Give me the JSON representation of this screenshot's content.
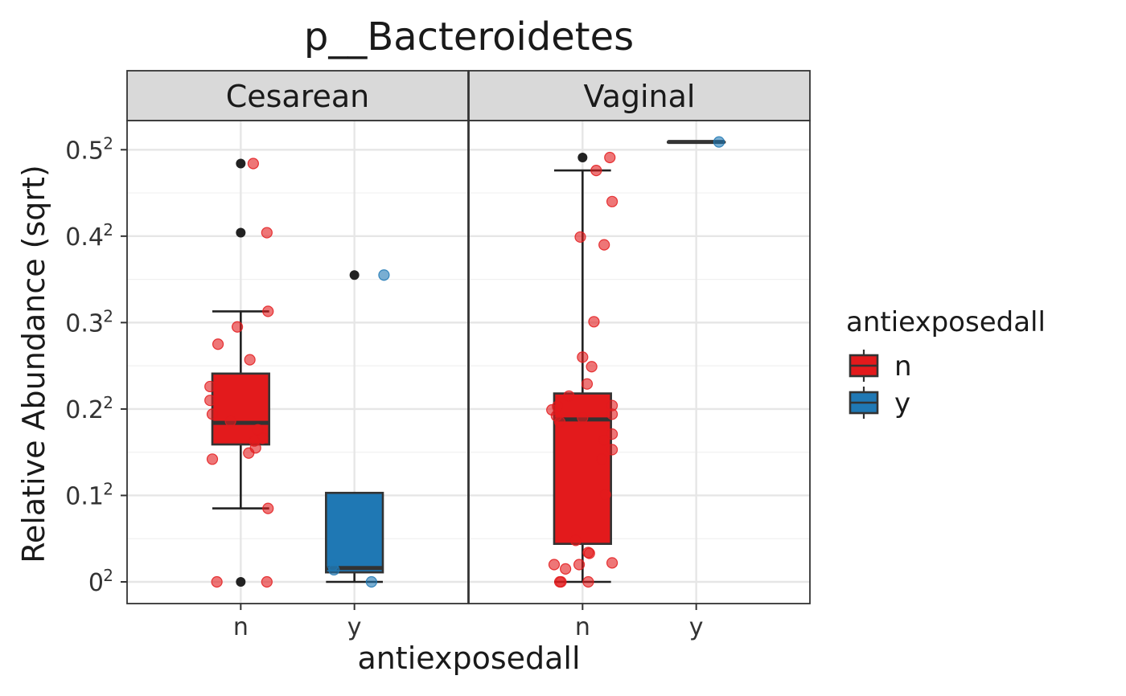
{
  "chart_data": {
    "type": "box",
    "title": "p__Bacteroidetes",
    "xlabel": "antiexposedall",
    "ylabel": "Relative Abundance (sqrt)",
    "y_scale": "sqrt",
    "ylim": [
      0,
      0.27
    ],
    "y_ticks": [
      {
        "base": "0",
        "exp": "2",
        "value": 0
      },
      {
        "base": "0.1",
        "exp": "2",
        "value": 0.01
      },
      {
        "base": "0.2",
        "exp": "2",
        "value": 0.04
      },
      {
        "base": "0.3",
        "exp": "2",
        "value": 0.09
      },
      {
        "base": "0.4",
        "exp": "2",
        "value": 0.16
      },
      {
        "base": "0.5",
        "exp": "2",
        "value": 0.25
      }
    ],
    "categories": [
      "n",
      "y"
    ],
    "facets": [
      "Cesarean",
      "Vaginal"
    ],
    "grid": true,
    "legend": {
      "title": "antiexposedall",
      "position": "right",
      "entries": [
        {
          "label": "n",
          "color": "#E31A1C"
        },
        {
          "label": "y",
          "color": "#1F78B4"
        }
      ]
    },
    "panels": [
      {
        "facet": "Cesarean",
        "groups": [
          {
            "category": "n",
            "box": {
              "min_sqrt": 0.085,
              "q1_sqrt": 0.159,
              "median_sqrt": 0.184,
              "q3_sqrt": 0.241,
              "max_sqrt": 0.313
            },
            "outliers_sqrt": [
              0.484,
              0.404,
              0.0
            ],
            "points": [
              {
                "dx": 0.11,
                "y_sqrt": 0.484
              },
              {
                "dx": 0.23,
                "y_sqrt": 0.404
              },
              {
                "dx": 0.24,
                "y_sqrt": 0.313
              },
              {
                "dx": -0.03,
                "y_sqrt": 0.295
              },
              {
                "dx": -0.2,
                "y_sqrt": 0.275
              },
              {
                "dx": 0.08,
                "y_sqrt": 0.257
              },
              {
                "dx": -0.27,
                "y_sqrt": 0.226
              },
              {
                "dx": -0.27,
                "y_sqrt": 0.21
              },
              {
                "dx": -0.25,
                "y_sqrt": 0.194
              },
              {
                "dx": -0.09,
                "y_sqrt": 0.186
              },
              {
                "dx": 0.15,
                "y_sqrt": 0.176
              },
              {
                "dx": 0.19,
                "y_sqrt": 0.166
              },
              {
                "dx": 0.12,
                "y_sqrt": 0.163
              },
              {
                "dx": 0.13,
                "y_sqrt": 0.155
              },
              {
                "dx": 0.07,
                "y_sqrt": 0.149
              },
              {
                "dx": -0.25,
                "y_sqrt": 0.142
              },
              {
                "dx": 0.24,
                "y_sqrt": 0.085
              },
              {
                "dx": -0.21,
                "y_sqrt": 0.0
              },
              {
                "dx": 0.23,
                "y_sqrt": 0.0
              }
            ]
          },
          {
            "category": "y",
            "box": {
              "min_sqrt": 0.0,
              "q1_sqrt": 0.011,
              "median_sqrt": 0.016,
              "q3_sqrt": 0.103,
              "max_sqrt": 0.103
            },
            "outliers_sqrt": [
              0.355
            ],
            "points": [
              {
                "dx": 0.26,
                "y_sqrt": 0.355
              },
              {
                "dx": -0.19,
                "y_sqrt": 0.019
              },
              {
                "dx": -0.18,
                "y_sqrt": 0.014
              },
              {
                "dx": 0.15,
                "y_sqrt": 0.0
              }
            ]
          }
        ]
      },
      {
        "facet": "Vaginal",
        "groups": [
          {
            "category": "n",
            "box": {
              "min_sqrt": 0.0,
              "q1_sqrt": 0.044,
              "median_sqrt": 0.188,
              "q3_sqrt": 0.218,
              "max_sqrt": 0.476
            },
            "outliers_sqrt": [
              0.491
            ],
            "points": [
              {
                "dx": 0.24,
                "y_sqrt": 0.491
              },
              {
                "dx": 0.12,
                "y_sqrt": 0.476
              },
              {
                "dx": 0.26,
                "y_sqrt": 0.44
              },
              {
                "dx": -0.02,
                "y_sqrt": 0.399
              },
              {
                "dx": 0.19,
                "y_sqrt": 0.39
              },
              {
                "dx": 0.1,
                "y_sqrt": 0.301
              },
              {
                "dx": 0.0,
                "y_sqrt": 0.26
              },
              {
                "dx": 0.08,
                "y_sqrt": 0.249
              },
              {
                "dx": 0.04,
                "y_sqrt": 0.229
              },
              {
                "dx": -0.12,
                "y_sqrt": 0.215
              },
              {
                "dx": 0.26,
                "y_sqrt": 0.204
              },
              {
                "dx": -0.22,
                "y_sqrt": 0.203
              },
              {
                "dx": -0.27,
                "y_sqrt": 0.199
              },
              {
                "dx": 0.26,
                "y_sqrt": 0.194
              },
              {
                "dx": -0.23,
                "y_sqrt": 0.192
              },
              {
                "dx": 0.0,
                "y_sqrt": 0.19
              },
              {
                "dx": -0.2,
                "y_sqrt": 0.185
              },
              {
                "dx": 0.26,
                "y_sqrt": 0.171
              },
              {
                "dx": 0.19,
                "y_sqrt": 0.164
              },
              {
                "dx": 0.26,
                "y_sqrt": 0.153
              },
              {
                "dx": 0.17,
                "y_sqrt": 0.142
              },
              {
                "dx": 0.2,
                "y_sqrt": 0.101
              },
              {
                "dx": -0.06,
                "y_sqrt": 0.048
              },
              {
                "dx": 0.05,
                "y_sqrt": 0.034
              },
              {
                "dx": 0.06,
                "y_sqrt": 0.033
              },
              {
                "dx": 0.26,
                "y_sqrt": 0.022
              },
              {
                "dx": -0.25,
                "y_sqrt": 0.02
              },
              {
                "dx": -0.03,
                "y_sqrt": 0.02
              },
              {
                "dx": -0.15,
                "y_sqrt": 0.015
              },
              {
                "dx": -0.19,
                "y_sqrt": 0.0
              },
              {
                "dx": -0.2,
                "y_sqrt": 0.0
              },
              {
                "dx": 0.05,
                "y_sqrt": 0.0
              }
            ]
          },
          {
            "category": "y",
            "box": {
              "min_sqrt": 0.509,
              "q1_sqrt": 0.509,
              "median_sqrt": 0.509,
              "q3_sqrt": 0.509,
              "max_sqrt": 0.509
            },
            "outliers_sqrt": [],
            "points": [
              {
                "dx": 0.2,
                "y_sqrt": 0.509
              }
            ]
          }
        ]
      }
    ]
  }
}
